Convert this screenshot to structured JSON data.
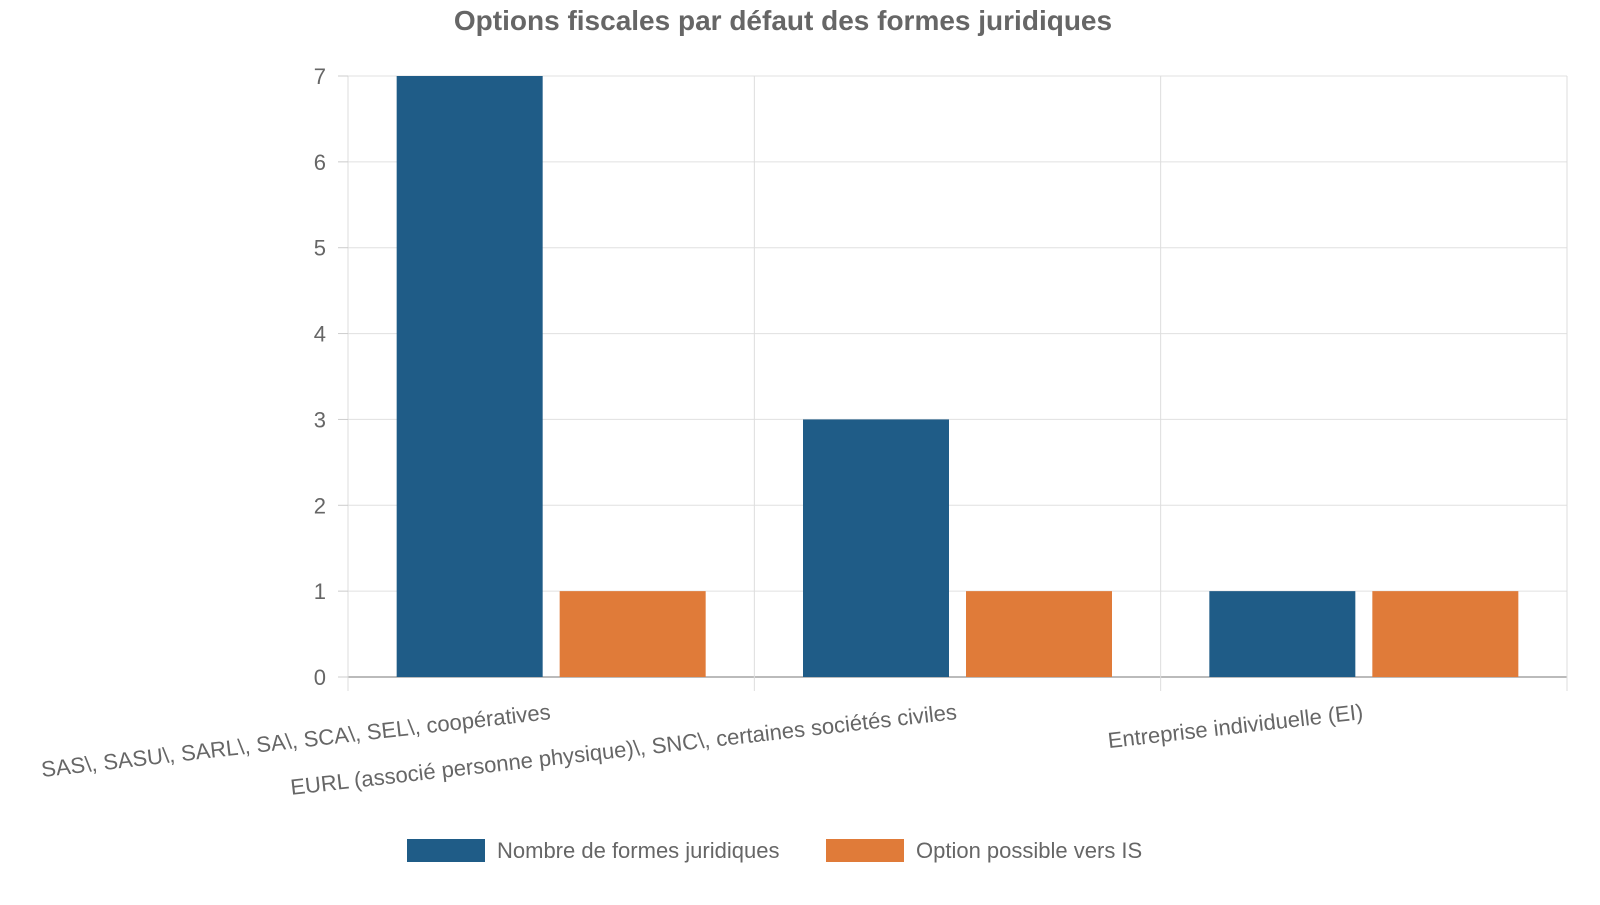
{
  "chart_data": {
    "type": "bar",
    "title": "Options fiscales par défaut des formes juridiques",
    "xlabel": "",
    "ylabel": "",
    "ylim": [
      0,
      7
    ],
    "yticks": [
      "0",
      "1",
      "2",
      "3",
      "4",
      "5",
      "6",
      "7"
    ],
    "grid": true,
    "legend_position": "bottom",
    "categories": [
      "SAS\\, SASU\\, SARL\\, SA\\, SCA\\, SEL\\, coopératives",
      "EURL (associé personne physique)\\, SNC\\, certaines sociétés civiles",
      "Entreprise individuelle (EI)"
    ],
    "series": [
      {
        "name": "Nombre de formes juridiques",
        "values": [
          7,
          3,
          1
        ],
        "color": "#1f5c87"
      },
      {
        "name": "Option possible vers IS",
        "values": [
          1,
          1,
          1
        ],
        "color": "#e07b39"
      }
    ]
  }
}
